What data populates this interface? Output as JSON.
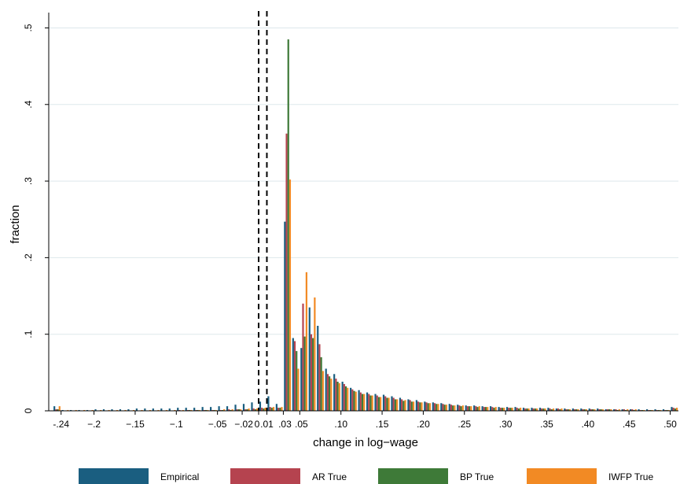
{
  "chart_data": {
    "type": "bar",
    "title": "",
    "xlabel": "change in log−wage",
    "ylabel": "fraction",
    "xlim": [
      -0.255,
      0.51
    ],
    "ylim": [
      0,
      0.52
    ],
    "grid": true,
    "legend_position": "bottom",
    "x_ticks": [
      {
        "value": -0.24,
        "label": "-.24"
      },
      {
        "value": -0.2,
        "label": "−.2"
      },
      {
        "value": -0.15,
        "label": "−.15"
      },
      {
        "value": -0.1,
        "label": "−.1"
      },
      {
        "value": -0.05,
        "label": "−.05"
      },
      {
        "value": -0.02,
        "label": "−.02"
      },
      {
        "value": 0.0,
        "label": "0"
      },
      {
        "value": 0.01,
        "label": ".01"
      },
      {
        "value": 0.03,
        "label": ".03"
      },
      {
        "value": 0.05,
        "label": ".05"
      },
      {
        "value": 0.1,
        "label": ".10"
      },
      {
        "value": 0.15,
        "label": ".15"
      },
      {
        "value": 0.2,
        "label": ".20"
      },
      {
        "value": 0.25,
        "label": ".25"
      },
      {
        "value": 0.3,
        "label": ".30"
      },
      {
        "value": 0.35,
        "label": ".35"
      },
      {
        "value": 0.4,
        "label": ".40"
      },
      {
        "value": 0.45,
        "label": ".45"
      },
      {
        "value": 0.5,
        "label": ".50"
      }
    ],
    "y_ticks": [
      {
        "value": 0,
        "label": "0"
      },
      {
        "value": 0.1,
        "label": ".1"
      },
      {
        "value": 0.2,
        "label": ".2"
      },
      {
        "value": 0.3,
        "label": ".3"
      },
      {
        "value": 0.4,
        "label": ".4"
      },
      {
        "value": 0.5,
        "label": ".5"
      }
    ],
    "reference_lines": [
      0.0,
      0.01
    ],
    "bins": [
      -0.245,
      -0.235,
      -0.225,
      -0.215,
      -0.205,
      -0.195,
      -0.185,
      -0.175,
      -0.165,
      -0.155,
      -0.145,
      -0.135,
      -0.125,
      -0.115,
      -0.105,
      -0.095,
      -0.085,
      -0.075,
      -0.065,
      -0.055,
      -0.045,
      -0.035,
      -0.025,
      -0.015,
      -0.005,
      0.005,
      0.015,
      0.025,
      0.035,
      0.045,
      0.055,
      0.065,
      0.075,
      0.085,
      0.095,
      0.105,
      0.115,
      0.125,
      0.135,
      0.145,
      0.155,
      0.165,
      0.175,
      0.185,
      0.195,
      0.205,
      0.215,
      0.225,
      0.235,
      0.245,
      0.255,
      0.265,
      0.275,
      0.285,
      0.295,
      0.305,
      0.315,
      0.325,
      0.335,
      0.345,
      0.355,
      0.365,
      0.375,
      0.385,
      0.395,
      0.405,
      0.415,
      0.425,
      0.435,
      0.445,
      0.455,
      0.465,
      0.475,
      0.485,
      0.495,
      0.505
    ],
    "series": [
      {
        "name": "Empirical",
        "color": "#1a5e80",
        "values": [
          0.006,
          0.001,
          0.001,
          0.001,
          0.001,
          0.002,
          0.002,
          0.002,
          0.002,
          0.002,
          0.003,
          0.003,
          0.003,
          0.003,
          0.003,
          0.004,
          0.004,
          0.004,
          0.005,
          0.005,
          0.006,
          0.006,
          0.008,
          0.009,
          0.011,
          0.012,
          0.019,
          0.009,
          0.247,
          0.095,
          0.082,
          0.135,
          0.111,
          0.055,
          0.048,
          0.038,
          0.03,
          0.027,
          0.024,
          0.022,
          0.021,
          0.019,
          0.017,
          0.015,
          0.014,
          0.012,
          0.011,
          0.01,
          0.009,
          0.008,
          0.007,
          0.007,
          0.006,
          0.006,
          0.005,
          0.005,
          0.005,
          0.004,
          0.004,
          0.004,
          0.004,
          0.003,
          0.003,
          0.003,
          0.003,
          0.003,
          0.003,
          0.002,
          0.002,
          0.002,
          0.002,
          0.002,
          0.002,
          0.002,
          0.002,
          0.005
        ]
      },
      {
        "name": "AR True",
        "color": "#b5434f",
        "values": [
          0.002,
          0.0005,
          0.0005,
          0.0005,
          0.0005,
          0.0005,
          0.0005,
          0.0005,
          0.0005,
          0.0005,
          0.0005,
          0.0005,
          0.0005,
          0.0005,
          0.0005,
          0.001,
          0.001,
          0.001,
          0.001,
          0.001,
          0.001,
          0.002,
          0.002,
          0.002,
          0.003,
          0.004,
          0.005,
          0.004,
          0.362,
          0.091,
          0.14,
          0.1,
          0.087,
          0.048,
          0.042,
          0.035,
          0.028,
          0.024,
          0.022,
          0.02,
          0.019,
          0.017,
          0.015,
          0.014,
          0.012,
          0.011,
          0.01,
          0.009,
          0.008,
          0.007,
          0.006,
          0.006,
          0.005,
          0.005,
          0.004,
          0.004,
          0.004,
          0.003,
          0.003,
          0.003,
          0.003,
          0.003,
          0.002,
          0.002,
          0.002,
          0.002,
          0.002,
          0.002,
          0.002,
          0.002,
          0.002,
          0.001,
          0.001,
          0.001,
          0.001,
          0.004
        ]
      },
      {
        "name": "BP True",
        "color": "#3e7a38",
        "values": [
          0.002,
          0.0005,
          0.0005,
          0.0005,
          0.0005,
          0.0005,
          0.0005,
          0.0005,
          0.0005,
          0.0005,
          0.0005,
          0.0005,
          0.0005,
          0.0005,
          0.0005,
          0.0005,
          0.001,
          0.001,
          0.001,
          0.001,
          0.001,
          0.001,
          0.002,
          0.002,
          0.002,
          0.003,
          0.004,
          0.004,
          0.485,
          0.078,
          0.097,
          0.095,
          0.07,
          0.045,
          0.038,
          0.032,
          0.026,
          0.022,
          0.02,
          0.018,
          0.017,
          0.015,
          0.013,
          0.012,
          0.011,
          0.01,
          0.009,
          0.008,
          0.007,
          0.006,
          0.006,
          0.005,
          0.005,
          0.004,
          0.004,
          0.004,
          0.003,
          0.003,
          0.003,
          0.003,
          0.002,
          0.002,
          0.002,
          0.002,
          0.002,
          0.002,
          0.002,
          0.002,
          0.001,
          0.001,
          0.001,
          0.001,
          0.001,
          0.001,
          0.001,
          0.003
        ]
      },
      {
        "name": "IWFP True",
        "color": "#f28a24",
        "values": [
          0.006,
          0.001,
          0.001,
          0.001,
          0.001,
          0.001,
          0.001,
          0.001,
          0.001,
          0.001,
          0.001,
          0.001,
          0.001,
          0.001,
          0.001,
          0.001,
          0.001,
          0.001,
          0.001,
          0.001,
          0.002,
          0.002,
          0.002,
          0.003,
          0.003,
          0.004,
          0.005,
          0.005,
          0.302,
          0.055,
          0.181,
          0.148,
          0.052,
          0.042,
          0.036,
          0.03,
          0.025,
          0.022,
          0.02,
          0.018,
          0.017,
          0.015,
          0.014,
          0.012,
          0.011,
          0.01,
          0.009,
          0.008,
          0.007,
          0.007,
          0.006,
          0.006,
          0.005,
          0.005,
          0.004,
          0.004,
          0.004,
          0.003,
          0.003,
          0.003,
          0.003,
          0.003,
          0.002,
          0.002,
          0.002,
          0.002,
          0.002,
          0.002,
          0.002,
          0.002,
          0.002,
          0.001,
          0.001,
          0.001,
          0.001,
          0.004
        ]
      }
    ]
  }
}
